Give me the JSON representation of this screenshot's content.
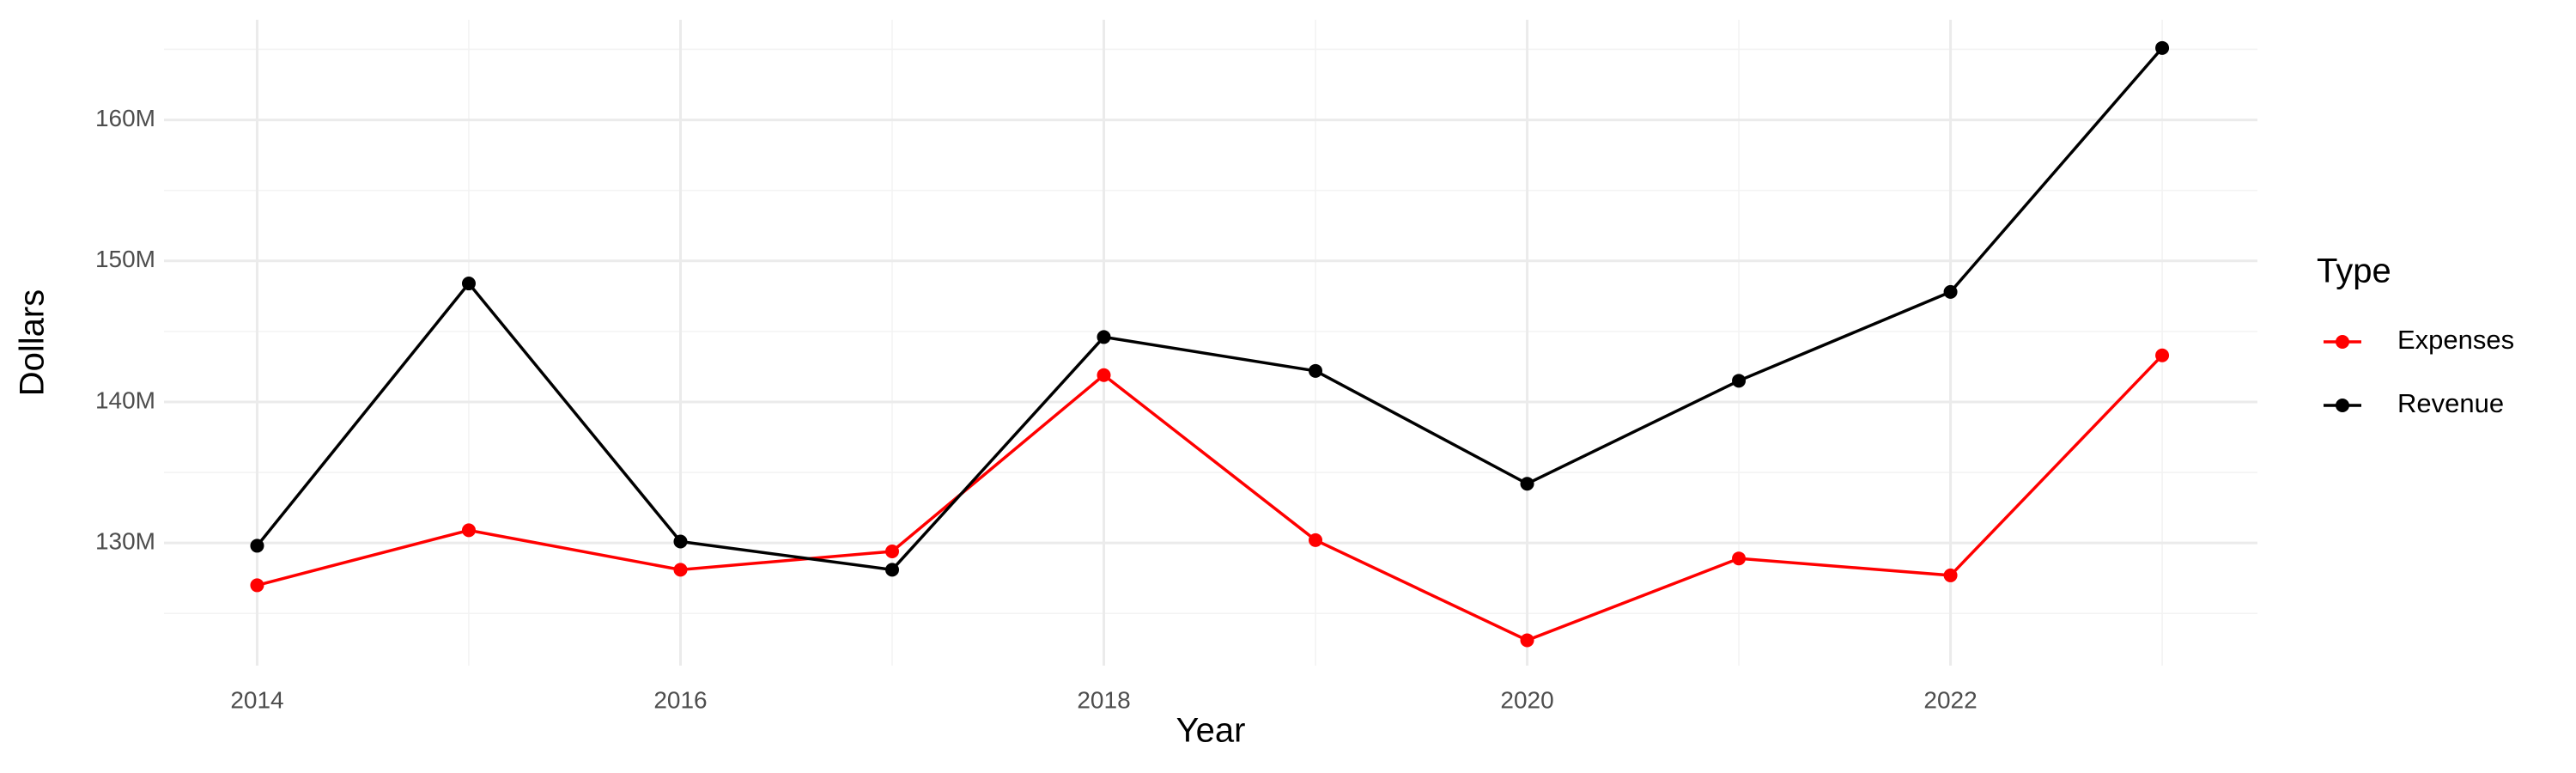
{
  "chart_data": {
    "type": "line",
    "x_label": "Year",
    "y_label": "Dollars",
    "legend_title": "Type",
    "legend_position": "right",
    "grid": true,
    "x": [
      2014,
      2015,
      2016,
      2017,
      2018,
      2019,
      2020,
      2021,
      2022,
      2023
    ],
    "series": [
      {
        "name": "Expenses",
        "color": "#ff0000",
        "values": [
          127000000,
          130900000,
          128100000,
          129400000,
          141900000,
          130200000,
          123100000,
          128900000,
          127700000,
          143300000
        ]
      },
      {
        "name": "Revenue",
        "color": "#000000",
        "values": [
          129800000,
          148400000,
          130100000,
          128100000,
          144600000,
          142200000,
          134200000,
          141500000,
          147800000,
          165100000
        ]
      }
    ],
    "xlim": [
      2013.56,
      2023.45
    ],
    "xticks": [
      2014,
      2016,
      2018,
      2020,
      2022
    ],
    "ylim": [
      121300000,
      167100000
    ],
    "yticks": [
      {
        "value": 130000000,
        "label": "130M"
      },
      {
        "value": 140000000,
        "label": "140M"
      },
      {
        "value": 150000000,
        "label": "150M"
      },
      {
        "value": 160000000,
        "label": "160M"
      }
    ]
  }
}
